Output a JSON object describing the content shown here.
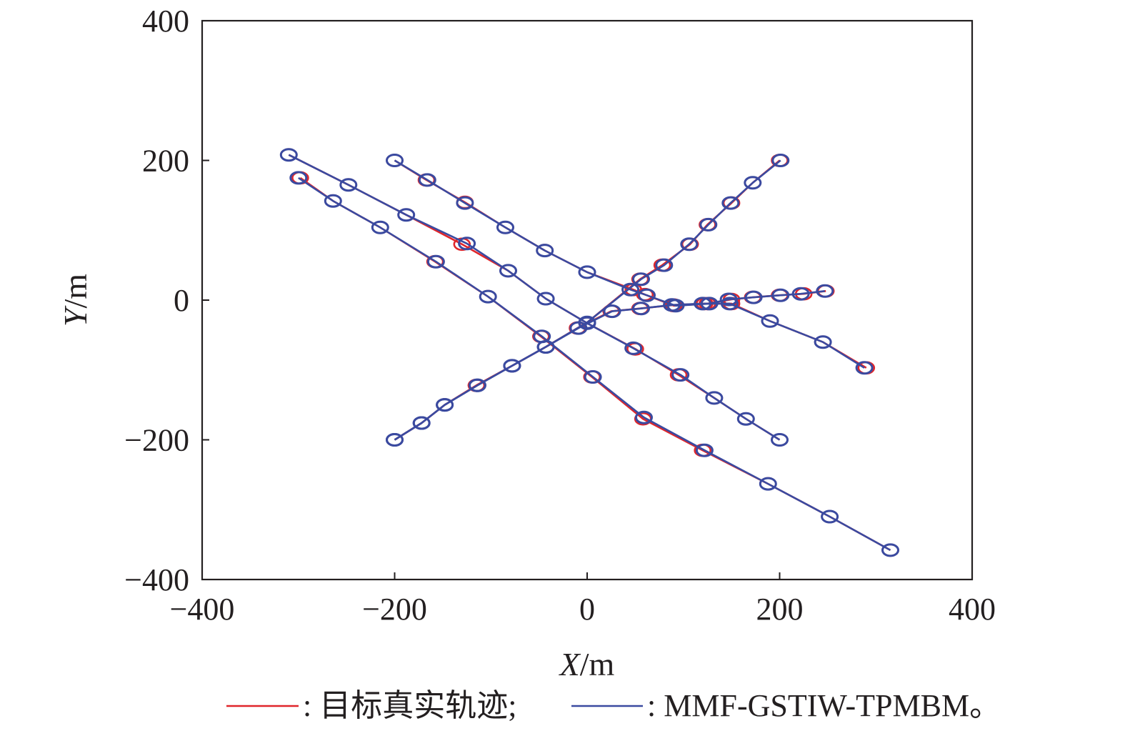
{
  "chart_data": {
    "type": "line",
    "xlabel_var": "X",
    "xlabel_unit": "/m",
    "ylabel_var": "Y",
    "ylabel_unit": "/m",
    "xlim": [
      -400,
      400
    ],
    "ylim": [
      -400,
      400
    ],
    "xticks": [
      "−400",
      "−200",
      "0",
      "200",
      "400"
    ],
    "yticks": [
      "400",
      "200",
      "0",
      "−200",
      "−400"
    ],
    "xtick_values": [
      -400,
      -200,
      0,
      200,
      400
    ],
    "ytick_values": [
      400,
      200,
      0,
      -200,
      -400
    ],
    "grid": false,
    "legend_placement": "bottom",
    "colors": {
      "truth": "#e0262b",
      "estimate": "#3a4aa0"
    },
    "legend": {
      "truth_label": ": 目标真实轨迹;",
      "estimate_label": ": MMF-GSTIW-TPMBM。"
    },
    "series": [
      {
        "role": "truth",
        "tracks": [
          [
            [
              -310,
              208
            ],
            [
              -248,
              165
            ],
            [
              -188,
              122
            ],
            [
              -130,
              80
            ],
            [
              -82,
              42
            ],
            [
              -43,
              2
            ],
            [
              0,
              -33
            ],
            [
              50,
              -70
            ],
            [
              95,
              -107
            ],
            [
              132,
              -140
            ],
            [
              165,
              -170
            ],
            [
              200,
              -200
            ]
          ],
          [
            [
              -200,
              200
            ],
            [
              -167,
              172
            ],
            [
              -127,
              140
            ],
            [
              -85,
              104
            ],
            [
              -44,
              71
            ],
            [
              0,
              40
            ],
            [
              48,
              15
            ],
            [
              60,
              8
            ],
            [
              90,
              -8
            ],
            [
              125,
              -5
            ],
            [
              150,
              1
            ],
            [
              172,
              4
            ],
            [
              200,
              7
            ],
            [
              225,
              9
            ],
            [
              248,
              13
            ]
          ],
          [
            [
              -298,
              175
            ],
            [
              -264,
              142
            ],
            [
              -215,
              104
            ],
            [
              -158,
              55
            ],
            [
              -103,
              5
            ],
            [
              -48,
              -52
            ],
            [
              5,
              -110
            ],
            [
              58,
              -170
            ],
            [
              120,
              -215
            ],
            [
              188,
              -263
            ],
            [
              252,
              -310
            ],
            [
              315,
              -358
            ]
          ],
          [
            [
              -200,
              -200
            ],
            [
              -172,
              -176
            ],
            [
              -148,
              -150
            ],
            [
              -115,
              -122
            ],
            [
              -78,
              -94
            ],
            [
              -43,
              -67
            ],
            [
              -10,
              -40
            ],
            [
              25,
              -16
            ],
            [
              55,
              -12
            ],
            [
              90,
              -7
            ],
            [
              122,
              -5
            ],
            [
              150,
              -5
            ],
            [
              190,
              -30
            ],
            [
              245,
              -60
            ],
            [
              290,
              -97
            ]
          ],
          [
            [
              -200,
              -200
            ],
            [
              -172,
              -176
            ],
            [
              -148,
              -150
            ],
            [
              -115,
              -122
            ],
            [
              -78,
              -94
            ],
            [
              -43,
              -67
            ],
            [
              0,
              -32
            ],
            [
              55,
              30
            ],
            [
              78,
              50
            ],
            [
              107,
              80
            ],
            [
              125,
              108
            ],
            [
              150,
              139
            ],
            [
              172,
              168
            ],
            [
              200,
              200
            ]
          ]
        ]
      },
      {
        "role": "estimate",
        "tracks": [
          [
            [
              -310,
              208
            ],
            [
              -248,
              165
            ],
            [
              -188,
              122
            ],
            [
              -125,
              81
            ],
            [
              -82,
              42
            ],
            [
              -43,
              2
            ],
            [
              0,
              -33
            ],
            [
              48,
              -69
            ],
            [
              97,
              -107
            ],
            [
              132,
              -140
            ],
            [
              165,
              -170
            ],
            [
              200,
              -200
            ]
          ],
          [
            [
              -200,
              200
            ],
            [
              -166,
              172
            ],
            [
              -127,
              139
            ],
            [
              -85,
              104
            ],
            [
              -44,
              71
            ],
            [
              0,
              40
            ],
            [
              45,
              15
            ],
            [
              62,
              7
            ],
            [
              92,
              -8
            ],
            [
              127,
              -5
            ],
            [
              147,
              1
            ],
            [
              173,
              4
            ],
            [
              201,
              7
            ],
            [
              222,
              9
            ],
            [
              247,
              13
            ]
          ],
          [
            [
              -300,
              175
            ],
            [
              -264,
              142
            ],
            [
              -215,
              104
            ],
            [
              -157,
              55
            ],
            [
              -103,
              5
            ],
            [
              -47,
              -52
            ],
            [
              6,
              -110
            ],
            [
              59,
              -168
            ],
            [
              122,
              -215
            ],
            [
              188,
              -263
            ],
            [
              252,
              -310
            ],
            [
              315,
              -358
            ]
          ],
          [
            [
              -200,
              -200
            ],
            [
              -172,
              -176
            ],
            [
              -148,
              -150
            ],
            [
              -114,
              -122
            ],
            [
              -78,
              -94
            ],
            [
              -43,
              -67
            ],
            [
              -9,
              -40
            ],
            [
              26,
              -16
            ],
            [
              56,
              -12
            ],
            [
              88,
              -7
            ],
            [
              120,
              -5
            ],
            [
              148,
              -5
            ],
            [
              190,
              -30
            ],
            [
              245,
              -60
            ],
            [
              288,
              -97
            ]
          ],
          [
            [
              -200,
              -200
            ],
            [
              -172,
              -176
            ],
            [
              -148,
              -150
            ],
            [
              -114,
              -122
            ],
            [
              -78,
              -94
            ],
            [
              -43,
              -67
            ],
            [
              0,
              -32
            ],
            [
              56,
              30
            ],
            [
              80,
              50
            ],
            [
              106,
              80
            ],
            [
              126,
              108
            ],
            [
              149,
              139
            ],
            [
              172,
              168
            ],
            [
              201,
              200
            ]
          ]
        ]
      }
    ]
  }
}
